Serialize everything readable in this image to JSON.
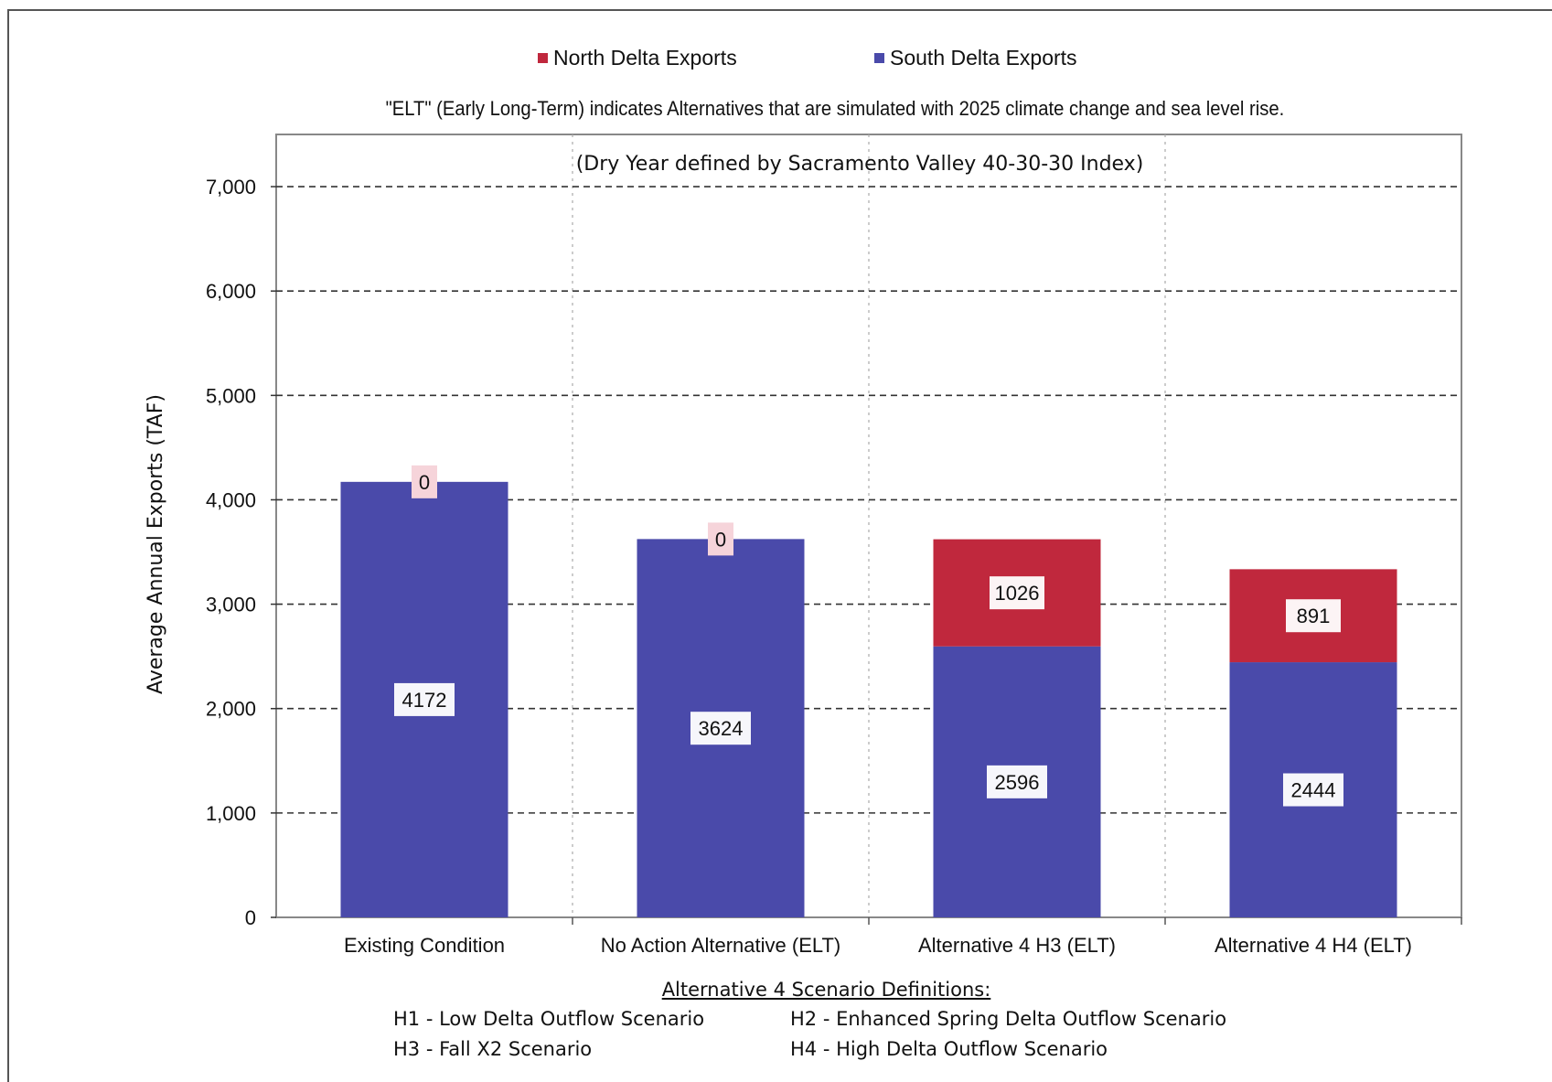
{
  "chart_data": {
    "type": "bar",
    "stacked": true,
    "categories": [
      "Existing Condition",
      "No Action Alternative (ELT)",
      "Alternative 4 H3 (ELT)",
      "Alternative 4 H4 (ELT)"
    ],
    "series": [
      {
        "name": "South Delta Exports",
        "color": "#4a4aaa",
        "values": [
          4172,
          3624,
          2596,
          2444
        ]
      },
      {
        "name": "North Delta Exports",
        "color": "#c0283d",
        "values": [
          0,
          0,
          1026,
          891
        ]
      }
    ],
    "inner_title": "(Dry Year defined by Sacramento Valley 40-30-30 Index)",
    "xlabel": "",
    "ylabel": "Average Annual Exports (TAF)",
    "ylim": [
      0,
      7500
    ],
    "yticks": [
      0,
      1000,
      2000,
      3000,
      4000,
      5000,
      6000,
      7000
    ],
    "ytick_labels": [
      "0",
      "1,000",
      "2,000",
      "3,000",
      "4,000",
      "5,000",
      "6,000",
      "7,000"
    ],
    "grid": true,
    "legend_position": "top"
  },
  "note": "\"ELT\" (Early Long-Term) indicates Alternatives that are simulated with 2025 climate change and sea level rise.",
  "definitions": {
    "title": "Alternative 4 Scenario Definitions:",
    "items": [
      "H1 - Low Delta Outflow Scenario",
      "H2 - Enhanced Spring Delta Outflow Scenario",
      "H3 - Fall X2 Scenario",
      "H4 - High Delta Outflow Scenario"
    ]
  }
}
